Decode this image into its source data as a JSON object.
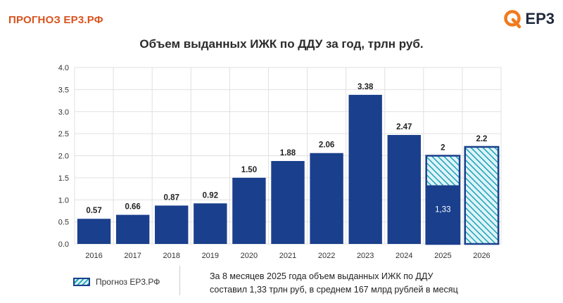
{
  "header": {
    "brand": "ПРОГНОЗ ЕР3.РФ",
    "logo_text": "ЕР3",
    "logo_icon": "q-logo-icon",
    "colors": {
      "brand": "#d8531e",
      "logo_ring": "#f07a1d"
    }
  },
  "chart_data": {
    "type": "bar",
    "title": "Объем выданных ИЖК по ДДУ за год, трлн руб.",
    "categories": [
      "2016",
      "2017",
      "2018",
      "2019",
      "2020",
      "2021",
      "2022",
      "2023",
      "2024",
      "2025",
      "2026"
    ],
    "values": [
      0.57,
      0.66,
      0.87,
      0.92,
      1.5,
      1.88,
      2.06,
      3.38,
      2.47,
      2,
      2.2
    ],
    "data_labels": [
      "0.57",
      "0.66",
      "0.87",
      "0.92",
      "1.50",
      "1.88",
      "2.06",
      "3.38",
      "2.47",
      "2",
      "2.2"
    ],
    "actual_part": {
      "category": "2025",
      "value": 1.33,
      "label": "1,33"
    },
    "forecast_categories": [
      "2025",
      "2026"
    ],
    "ylim": [
      0,
      4.0
    ],
    "yticks": [
      "0.0",
      "0.5",
      "1.0",
      "1.5",
      "2.0",
      "2.5",
      "3.0",
      "3.5",
      "4.0"
    ],
    "grid": true,
    "colors": {
      "bar": "#1a3f8c",
      "hatch_bg": "#dff3f7",
      "hatch_line": "#1aa3b8",
      "grid": "#e0e0e0"
    }
  },
  "legend": {
    "label": "Прогноз ЕР3.РФ"
  },
  "note": {
    "line1": "За 8 месяцев 2025 года объем выданных ИЖК по ДДУ",
    "line2": "составил 1,33 трлн руб, в среднем 167 млрд рублей в месяц"
  }
}
